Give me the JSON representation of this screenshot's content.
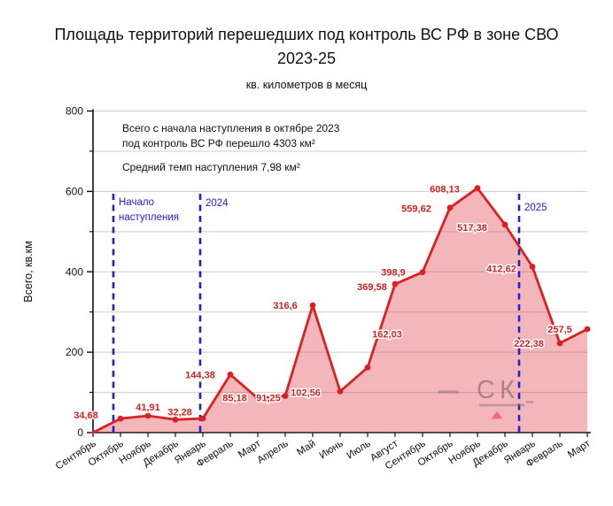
{
  "header": {
    "title_line1": "Площадь территорий перешедших под контроль ВС РФ в зоне СВО",
    "title_line2": "2023-25",
    "subtitle": "кв. километров в месяц"
  },
  "annotation": {
    "line1": "Всего с начала наступления в октябре 2023",
    "line2": "под контроль ВС РФ перешло 4303 км²",
    "line3": "Средний темп наступления 7,98 км²"
  },
  "watermark": {
    "text": "СК"
  },
  "colors": {
    "line": "#dc2020",
    "fill": "rgba(220,50,60,0.35)",
    "marker": "#dc2020",
    "data_label": "#cc2222",
    "dash_line": "#2222cc",
    "dash_label": "#2222cc",
    "grid": "#cccccc",
    "axis": "#111111",
    "watermark_gray": "#8a6f73",
    "watermark_triangle": "#e8566b"
  },
  "chart_data": {
    "type": "area",
    "title": "Площадь территорий перешедших под контроль ВС РФ в зоне СВО 2023-25",
    "subtitle": "кв. километров в месяц",
    "ylabel": "Всего, кв.км",
    "ylim": [
      0,
      800
    ],
    "yticks": [
      0,
      200,
      400,
      600,
      800
    ],
    "yticks_minor": [
      100,
      300,
      500,
      700
    ],
    "gridlines": [
      100,
      200,
      300,
      400,
      500,
      600,
      700,
      800
    ],
    "months": [
      "Сентябрь",
      "Октябрь",
      "Ноябрь",
      "Декабрь",
      "Январь",
      "Февраль",
      "Март",
      "Апрель",
      "Май",
      "Июнь",
      "Июль",
      "Август",
      "Сентябрь",
      "Октябрь",
      "Ноябрь",
      "Декабрь",
      "Январь",
      "Февраль",
      "Март"
    ],
    "values": [
      0,
      34.68,
      41.91,
      32.28,
      35,
      144.38,
      85.18,
      91.25,
      316.6,
      102.56,
      162.03,
      369.58,
      398.9,
      559.62,
      608.13,
      517.38,
      412.62,
      222.38,
      257.5
    ],
    "point_labels": [
      null,
      "34,68",
      "41,91",
      "32,28",
      null,
      "144,38",
      "85,18",
      "91,25",
      "316,6",
      "102,56",
      "162,03",
      "369,58",
      "398,9",
      "559,62",
      "608,13",
      "517,38",
      "412,62",
      "222,38",
      "257,5"
    ],
    "label_offsets": [
      null,
      [
        -39,
        -4
      ],
      [
        0,
        -10
      ],
      [
        5,
        -9
      ],
      null,
      [
        -34,
        0
      ],
      [
        -26,
        -1
      ],
      [
        -19,
        2
      ],
      [
        -31,
        0
      ],
      [
        -39,
        1
      ],
      [
        22,
        -38
      ],
      [
        -26,
        3
      ],
      [
        -33,
        0
      ],
      [
        -38,
        1
      ],
      [
        -37,
        1
      ],
      [
        -37,
        3
      ],
      [
        -35,
        2
      ],
      [
        -35,
        0
      ],
      [
        -31,
        0
      ]
    ],
    "vlines": [
      {
        "pos": 0.742,
        "lines": [
          "Начало",
          "наступления"
        ],
        "label_y": 232
      },
      {
        "pos": 3.903,
        "lines": [
          "2024"
        ],
        "label_y": 233
      },
      {
        "pos": 15.516,
        "lines": [
          "2025"
        ],
        "label_y": 238
      }
    ]
  }
}
